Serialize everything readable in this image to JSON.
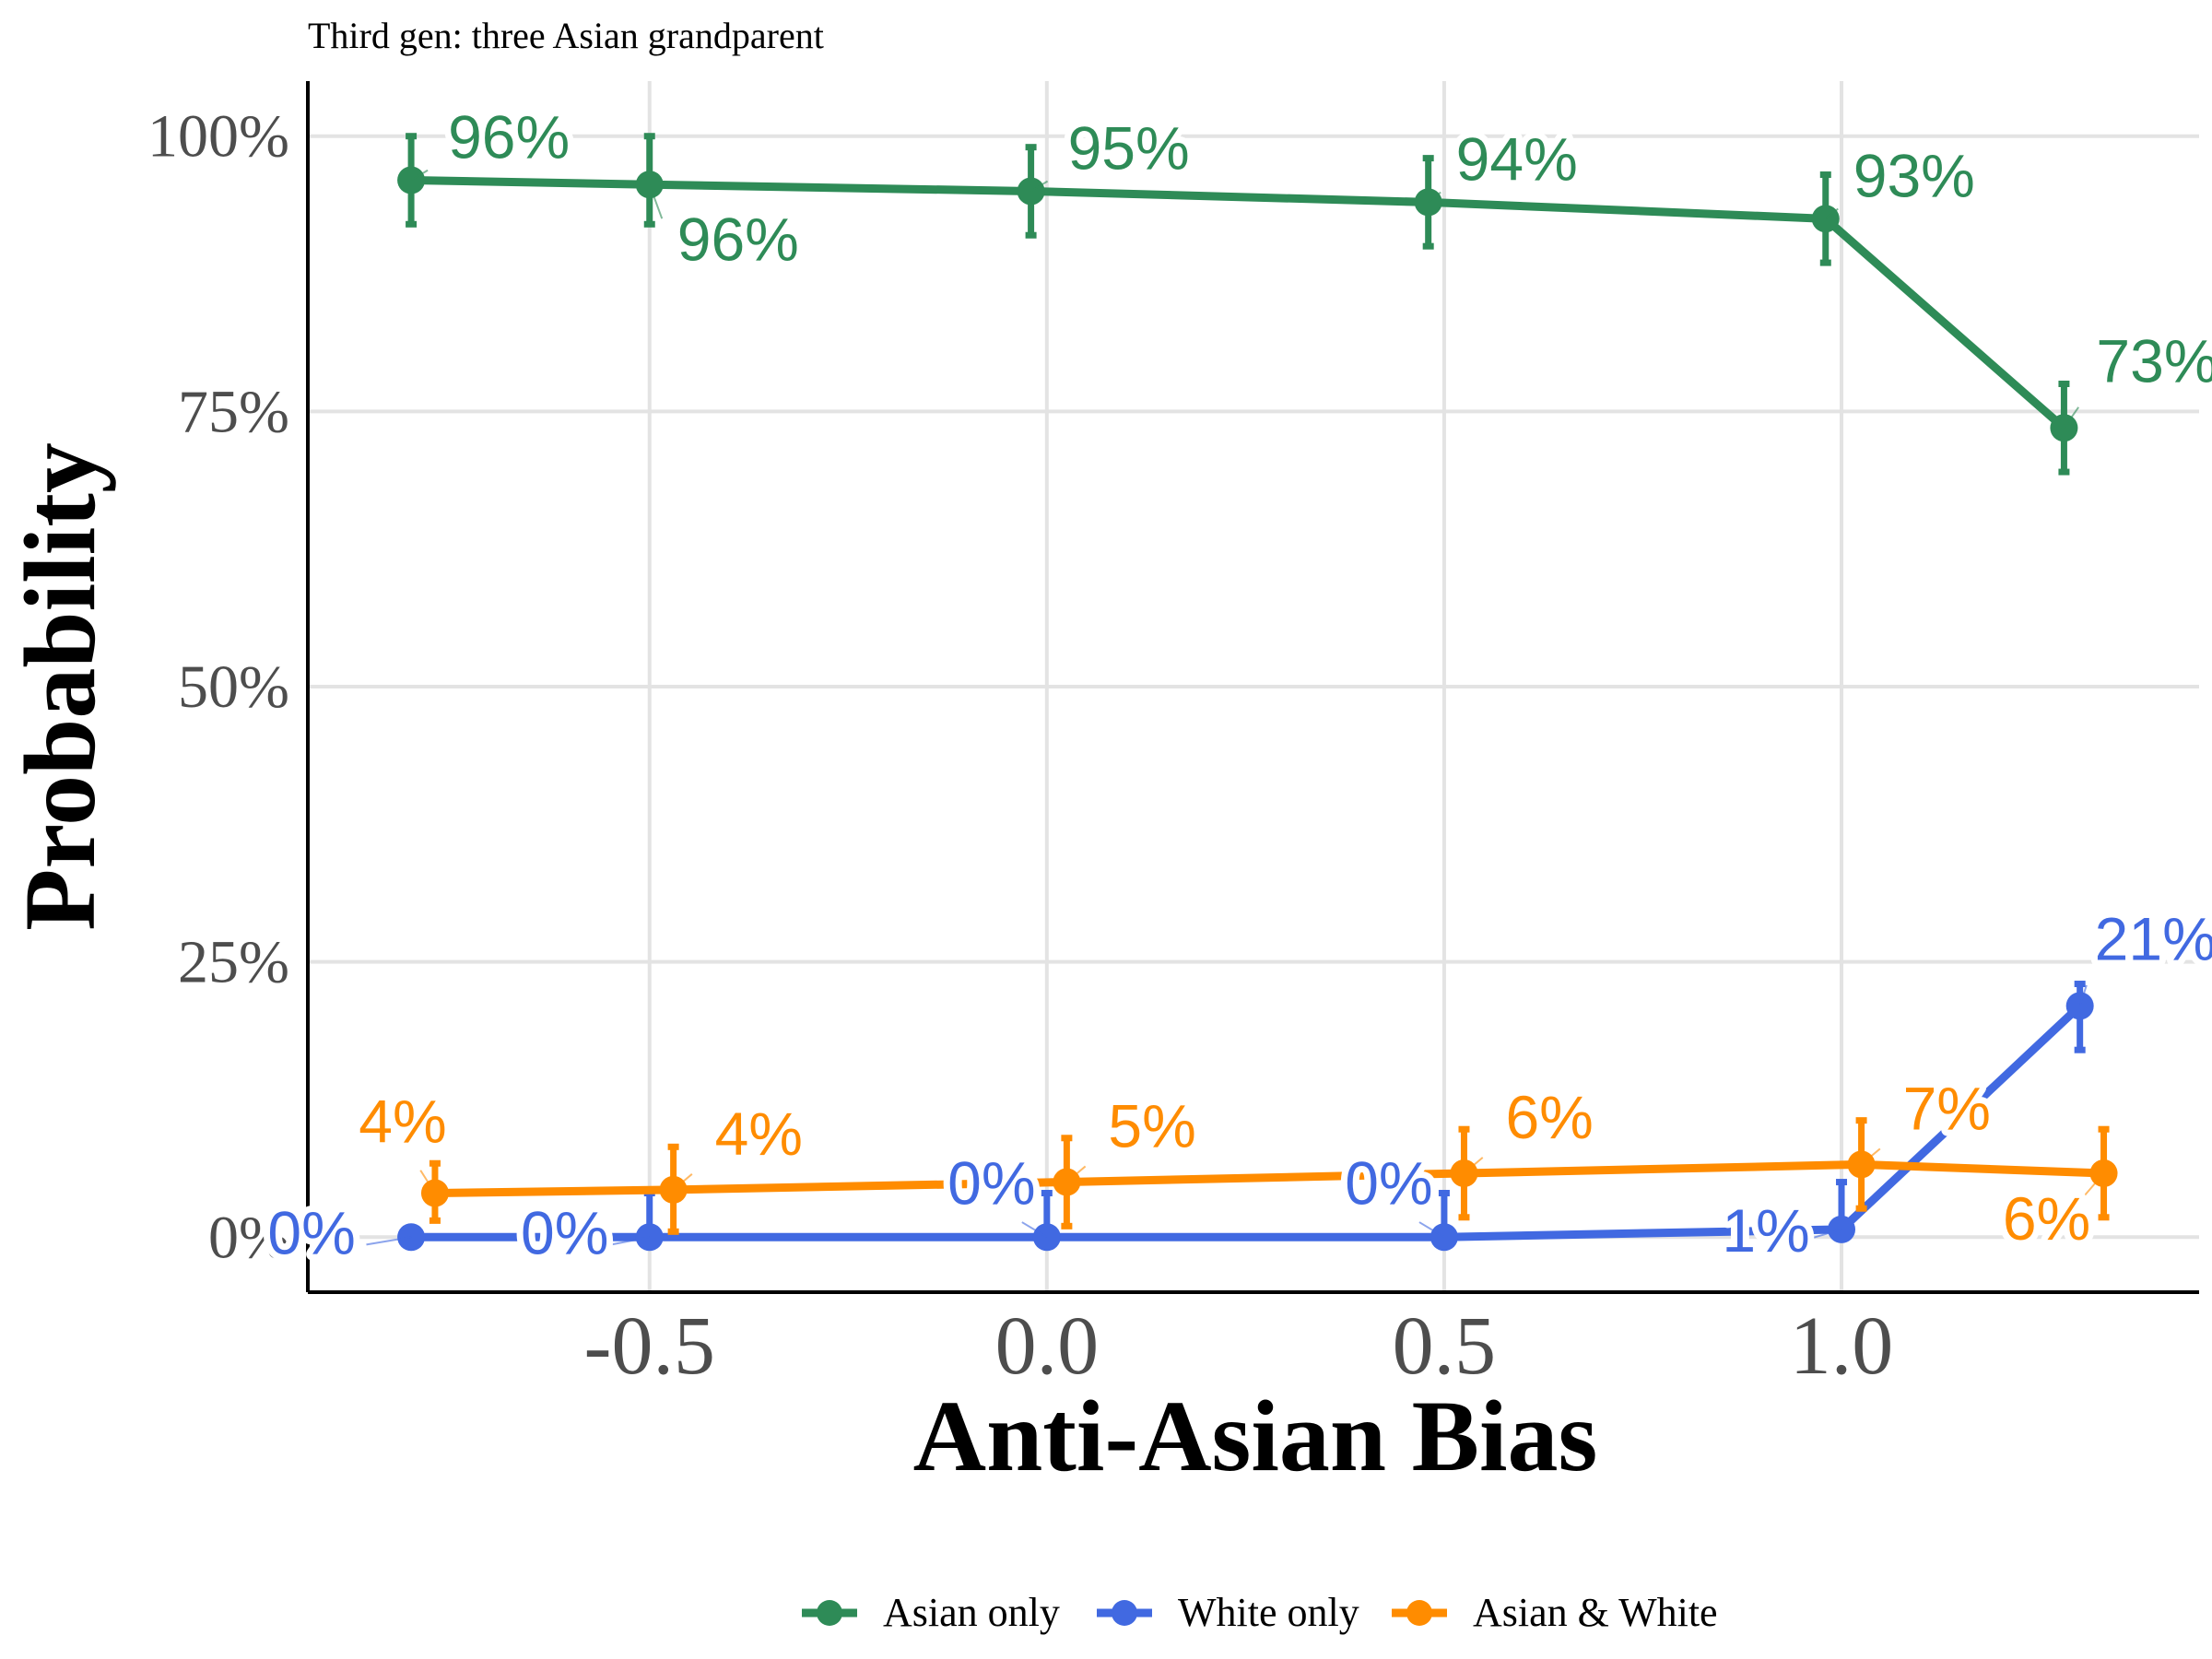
{
  "chart_data": {
    "type": "line",
    "subtitle": "Third gen: three Asian grandparent",
    "xlabel": "Anti-Asian Bias",
    "ylabel": "Probability",
    "xlim": [
      -0.93,
      1.45
    ],
    "ylim": [
      -0.05,
      1.05
    ],
    "x_ticks": [
      -0.5,
      0.0,
      0.5,
      1.0
    ],
    "x_tick_labels": [
      "-0.5",
      "0.0",
      "0.5",
      "1.0"
    ],
    "y_ticks": [
      0,
      0.25,
      0.5,
      0.75,
      1.0
    ],
    "y_tick_labels": [
      "0%",
      "25%",
      "50%",
      "75%",
      "100%"
    ],
    "grid": true,
    "legend_position": "bottom",
    "series": [
      {
        "name": "Asian only",
        "color": "#2e8b57",
        "points": [
          {
            "x": -0.8,
            "y": 0.96,
            "lo": 0.92,
            "hi": 1.0,
            "label": "96%"
          },
          {
            "x": -0.5,
            "y": 0.956,
            "lo": 0.92,
            "hi": 1.0,
            "label": "96%"
          },
          {
            "x": -0.02,
            "y": 0.95,
            "lo": 0.91,
            "hi": 0.99,
            "label": "95%"
          },
          {
            "x": 0.48,
            "y": 0.94,
            "lo": 0.9,
            "hi": 0.98,
            "label": "94%"
          },
          {
            "x": 0.98,
            "y": 0.925,
            "lo": 0.885,
            "hi": 0.965,
            "label": "93%"
          },
          {
            "x": 1.28,
            "y": 0.735,
            "lo": 0.695,
            "hi": 0.775,
            "label": "73%"
          }
        ]
      },
      {
        "name": "White only",
        "color": "#4169e1",
        "points": [
          {
            "x": -0.8,
            "y": 0.0,
            "lo": 0.0,
            "hi": 0.004,
            "label": "0%"
          },
          {
            "x": -0.5,
            "y": 0.0,
            "lo": 0.0,
            "hi": 0.04,
            "label": "0%"
          },
          {
            "x": 0.0,
            "y": 0.0,
            "lo": 0.0,
            "hi": 0.04,
            "label": "0%"
          },
          {
            "x": 0.5,
            "y": 0.0,
            "lo": 0.0,
            "hi": 0.04,
            "label": "0%"
          },
          {
            "x": 1.0,
            "y": 0.007,
            "lo": 0.0,
            "hi": 0.05,
            "label": "1%"
          },
          {
            "x": 1.3,
            "y": 0.21,
            "lo": 0.17,
            "hi": 0.23,
            "label": "21%"
          }
        ]
      },
      {
        "name": "Asian & White",
        "color": "#ff8c00",
        "points": [
          {
            "x": -0.77,
            "y": 0.04,
            "lo": 0.015,
            "hi": 0.067,
            "label": "4%"
          },
          {
            "x": -0.47,
            "y": 0.043,
            "lo": 0.005,
            "hi": 0.082,
            "label": "4%"
          },
          {
            "x": 0.025,
            "y": 0.05,
            "lo": 0.01,
            "hi": 0.09,
            "label": "5%"
          },
          {
            "x": 0.525,
            "y": 0.058,
            "lo": 0.018,
            "hi": 0.098,
            "label": "6%"
          },
          {
            "x": 1.025,
            "y": 0.066,
            "lo": 0.026,
            "hi": 0.106,
            "label": "7%"
          },
          {
            "x": 1.33,
            "y": 0.058,
            "lo": 0.018,
            "hi": 0.098,
            "label": "6%"
          }
        ]
      }
    ]
  }
}
